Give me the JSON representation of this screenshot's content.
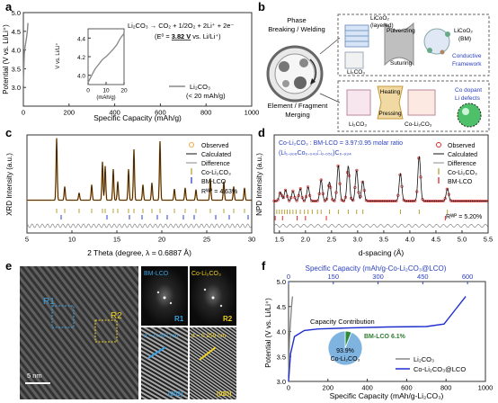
{
  "panels": {
    "a": {
      "letter": "a",
      "equation": "Li₂CO₃ → CO₂ + 1/2O₂ + 2Li⁺ + 2e⁻",
      "e0_prefix": "(E⁰ = ",
      "e0_value": "3.82 V",
      "e0_suffix": " vs. Li/Li⁺)",
      "ylabel": "Potential (V vs. Li/Li⁺)",
      "xlabel": "Specific Capacity (mAh/g)",
      "legend": [
        "Li₂CO₃",
        "(< 20 mAh/g)"
      ],
      "inset_ylabel": "V vs. Li/Li⁺",
      "inset_xlabel": "(mAh/g)"
    },
    "b": {
      "letter": "b",
      "phase": [
        "Phase",
        "Breaking / Welding"
      ],
      "element": [
        "Element / Fragment",
        "Merging"
      ],
      "top_labels": [
        "LiCoO₂",
        "(layered)",
        "Pulverizing",
        "Suturing",
        "LiCoO₂",
        "(BM)",
        "Li₂CO₃",
        "Conductive",
        "Framework"
      ],
      "bot_labels": [
        "Heating",
        "Pressing",
        "Li₂CO₃",
        "Co-Li₂CO₃",
        "Co dopant",
        "Li defects"
      ]
    },
    "c": {
      "letter": "c",
      "ylabel": "XRD Intensity (a.u.)",
      "xlabel": "2 Theta (degree, λ = 0.6887 Å)",
      "legend": [
        "Observed",
        "Calculated",
        "Difference",
        "Co-Li₂CO₃",
        "BM-LCO"
      ],
      "rwp": "Rᵂᴾ = 4.63%"
    },
    "d": {
      "letter": "d",
      "title1": "Co-Li₂CO₃ : BM-LCO = 3.97:0.95 molar ratio",
      "title2": "(Li₁.₉₀₆Co₀.₀₄₃□₀.₀₅₁)C₀.₉₃₄",
      "ylabel": "NPD Intensity (a.u.)",
      "xlabel": "d-spacing (Å)",
      "legend": [
        "Observed",
        "Calculated",
        "Difference",
        "Co-Li₂CO₃",
        "BM-LCO"
      ],
      "rwp": "Rᵂᴾ = 5.20%"
    },
    "e": {
      "letter": "e",
      "r1": "R1",
      "r2": "R2",
      "scale": "5 nm",
      "bm": "BM-LCO",
      "co": "Co-Li₂CO₃",
      "d1": "d = 0.467 nm",
      "d2": "d = 0.259 nm",
      "hkl1": "(003)",
      "hkl2": "(020)"
    },
    "f": {
      "letter": "f",
      "top_axis": "Specific Capacity (mAh/g-Co-Li₂CO₃@LCO)",
      "ylabel": "Potential (V vs. Li/Li⁺)",
      "xlabel": "Specific Capacity (mAh/g-Li₂CO₃)",
      "legend": [
        "Li₂CO₃",
        "Co-Li₂CO₃@LCO"
      ],
      "cc_title": "Capacity Contribution",
      "pie_a": "BM-LCO 6.1%",
      "pie_b1": "93.9%",
      "pie_b2": "Co-Li₂CO₃"
    }
  },
  "chart_data": [
    {
      "panel": "a",
      "type": "line",
      "xlabel": "Specific Capacity (mAh/g)",
      "ylabel": "Potential (V vs. Li/Li⁺)",
      "xlim": [
        0,
        1000
      ],
      "ylim": [
        2.5,
        5.0
      ],
      "x_ticks": [
        0,
        200,
        400,
        600,
        800,
        1000
      ],
      "y_ticks": [
        3.0,
        3.5,
        4.0,
        4.5,
        5.0
      ],
      "series": [
        {
          "name": "Li₂CO₃",
          "x": [
            0,
            4,
            8,
            12,
            15,
            18,
            20
          ],
          "y": [
            3.05,
            3.9,
            4.1,
            4.25,
            4.38,
            4.55,
            4.72
          ]
        }
      ],
      "inset": {
        "xlim": [
          0,
          20
        ],
        "ylim": [
          3.9,
          4.5
        ],
        "x_ticks": [
          0,
          10,
          20
        ],
        "y_ticks": [
          4.0,
          4.2,
          4.4
        ],
        "x": [
          0,
          2,
          4,
          6,
          8,
          10,
          12,
          14,
          16,
          18,
          20
        ],
        "y": [
          3.92,
          4.0,
          4.07,
          4.12,
          4.17,
          4.2,
          4.24,
          4.28,
          4.33,
          4.4,
          4.45
        ]
      }
    },
    {
      "panel": "c",
      "type": "line",
      "xlabel": "2 Theta (degree, λ = 0.6887 Å)",
      "ylabel": "XRD Intensity (a.u.)",
      "xlim": [
        5,
        30
      ],
      "x_ticks": [
        5,
        10,
        15,
        20,
        25,
        30
      ],
      "peaks": [
        [
          8.3,
          1.0
        ],
        [
          9.2,
          0.22
        ],
        [
          10.8,
          0.12
        ],
        [
          12.2,
          0.25
        ],
        [
          13.4,
          0.62
        ],
        [
          13.7,
          0.55
        ],
        [
          14.6,
          0.5
        ],
        [
          15.1,
          0.3
        ],
        [
          16.3,
          0.5
        ],
        [
          16.9,
          0.82
        ],
        [
          17.9,
          0.25
        ],
        [
          18.9,
          0.28
        ],
        [
          19.8,
          0.95
        ],
        [
          21.4,
          0.18
        ],
        [
          22.6,
          0.2
        ],
        [
          23.8,
          0.17
        ],
        [
          25.4,
          0.35
        ],
        [
          26.9,
          0.3
        ],
        [
          28.0,
          0.22
        ],
        [
          29.2,
          0.2
        ]
      ],
      "ticks_co": [
        8.3,
        9.2,
        10.8,
        12.2,
        13.4,
        13.7,
        14.6,
        15.1,
        16.3,
        16.9,
        17.9,
        18.9,
        19.8,
        21.4,
        22.6,
        23.8,
        25.4,
        26.9,
        28.0,
        29.2
      ],
      "ticks_lco": [
        8.8,
        13.9,
        16.4,
        17.8,
        19.5,
        20.6,
        22.4,
        23.6,
        26.0,
        27.5,
        29.6
      ]
    },
    {
      "panel": "d",
      "type": "line",
      "xlabel": "d-spacing (Å)",
      "ylabel": "NPD Intensity (a.u.)",
      "xlim": [
        1.4,
        5.5
      ],
      "x_ticks": [
        1.5,
        2.0,
        2.5,
        3.0,
        3.5,
        4.0,
        4.5,
        5.0,
        5.5
      ],
      "peaks": [
        [
          1.52,
          0.18
        ],
        [
          1.62,
          0.22
        ],
        [
          1.76,
          0.2
        ],
        [
          1.9,
          0.25
        ],
        [
          2.05,
          0.28
        ],
        [
          2.3,
          0.42
        ],
        [
          2.46,
          0.38
        ],
        [
          2.63,
          0.72
        ],
        [
          2.82,
          0.7
        ],
        [
          2.98,
          0.62
        ],
        [
          3.1,
          0.4
        ],
        [
          3.82,
          0.55
        ],
        [
          4.18,
          0.9
        ],
        [
          4.72,
          0.25
        ]
      ],
      "ticks_co": [
        1.45,
        1.5,
        1.55,
        1.6,
        1.65,
        1.7,
        1.76,
        1.82,
        1.9,
        1.98,
        2.05,
        2.13,
        2.23,
        2.3,
        2.46,
        2.63,
        2.82,
        2.98,
        3.1,
        3.82,
        4.18,
        4.72
      ],
      "ticks_lco": [
        1.42,
        1.56,
        1.84,
        2.0,
        2.4,
        4.68
      ]
    },
    {
      "panel": "f",
      "type": "line",
      "xlabel": "Specific Capacity (mAh/g-Li₂CO₃)",
      "ylabel": "Potential (V vs. Li/Li⁺)",
      "xlim": [
        0,
        1000
      ],
      "ylim": [
        3.0,
        5.0
      ],
      "x_ticks": [
        0,
        200,
        400,
        600,
        800,
        1000
      ],
      "y_ticks": [
        3.0,
        3.5,
        4.0,
        4.5,
        5.0
      ],
      "top_ticks": [
        0,
        150,
        300,
        450,
        600
      ],
      "series": [
        {
          "name": "Li₂CO₃",
          "x": [
            0,
            5,
            10,
            15,
            20
          ],
          "y": [
            3.1,
            3.9,
            4.2,
            4.5,
            4.7
          ]
        },
        {
          "name": "Co-Li₂CO₃@LCO",
          "x": [
            0,
            10,
            30,
            80,
            150,
            300,
            500,
            700,
            790,
            850,
            900
          ],
          "y": [
            3.0,
            3.55,
            3.9,
            4.02,
            4.05,
            4.07,
            4.09,
            4.1,
            4.15,
            4.45,
            4.7
          ]
        }
      ],
      "pie": [
        {
          "label": "BM-LCO",
          "value": 6.1
        },
        {
          "label": "Co-Li₂CO₃",
          "value": 93.9
        }
      ]
    }
  ]
}
